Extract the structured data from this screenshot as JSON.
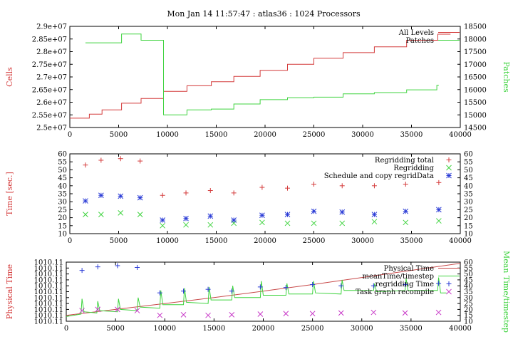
{
  "title": "Mon Jan 14 11:57:47 : atlas36 : 1024 Processors",
  "colors": {
    "red": "#d43a3a",
    "green": "#3fd33f",
    "blue": "#2a3bd6",
    "magenta": "#c83ac8",
    "phys": "#c84a4a"
  },
  "chart_data": [
    {
      "type": "line",
      "xlim": [
        0,
        40000
      ],
      "x_ticks": [
        "0",
        "5000",
        "10000",
        "15000",
        "20000",
        "25000",
        "30000",
        "35000",
        "40000"
      ],
      "ylabel": "Cells",
      "ylabel_right": "Patches",
      "ylim": [
        25000000,
        29000000
      ],
      "y_ticks": [
        "2.5e+07",
        "2.55e+07",
        "2.6e+07",
        "2.65e+07",
        "2.7e+07",
        "2.75e+07",
        "2.8e+07",
        "2.85e+07",
        "2.9e+07"
      ],
      "ylim_right": [
        14500,
        18500
      ],
      "y_ticks_right": [
        "14500",
        "15000",
        "15500",
        "16000",
        "16500",
        "17000",
        "17500",
        "18000",
        "18500"
      ],
      "legend_position": "top-right",
      "series": [
        {
          "name": "All Levels",
          "axis": "left",
          "color": "red",
          "x": [
            0,
            2000,
            2000,
            3300,
            3300,
            5300,
            5300,
            7300,
            7300,
            9600,
            9600,
            12000,
            12000,
            14500,
            14500,
            16800,
            16800,
            19500,
            19500,
            22300,
            22300,
            25000,
            25000,
            28000,
            28000,
            31200,
            31200,
            34500,
            34500,
            37700,
            37700,
            39000
          ],
          "y": [
            25370000,
            25370000,
            25530000,
            25530000,
            25700000,
            25700000,
            25960000,
            25960000,
            26150000,
            26150000,
            26430000,
            26430000,
            26650000,
            26650000,
            26810000,
            26810000,
            27020000,
            27020000,
            27260000,
            27260000,
            27500000,
            27500000,
            27740000,
            27740000,
            27960000,
            27960000,
            28190000,
            28190000,
            28450000,
            28450000,
            28690000,
            28690000
          ]
        },
        {
          "name": "Patches",
          "axis": "right",
          "color": "green",
          "x": [
            1600,
            5300,
            5300,
            7300,
            7300,
            9600,
            9600,
            12000,
            12000,
            14500,
            14500,
            16800,
            16800,
            19500,
            19500,
            22300,
            22300,
            25000,
            25000,
            28000,
            28000,
            31200,
            31200,
            34500,
            34500,
            37600,
            37600,
            37800
          ],
          "y": [
            17850,
            17850,
            18200,
            18200,
            17950,
            17950,
            15000,
            15000,
            15200,
            15200,
            15230,
            15230,
            15430,
            15430,
            15600,
            15600,
            15680,
            15680,
            15700,
            15700,
            15830,
            15830,
            15880,
            15880,
            15990,
            15990,
            16170,
            16170
          ]
        }
      ]
    },
    {
      "type": "scatter",
      "xlim": [
        0,
        40000
      ],
      "x_ticks": [
        "0",
        "5000",
        "10000",
        "15000",
        "20000",
        "25000",
        "30000",
        "35000",
        "40000"
      ],
      "ylabel": "Time [sec.]",
      "ylim": [
        10,
        60
      ],
      "y_ticks": [
        "10",
        "15",
        "20",
        "25",
        "30",
        "35",
        "40",
        "45",
        "50",
        "55",
        "60"
      ],
      "ylim_right": [
        10,
        60
      ],
      "y_ticks_right": [
        "10",
        "15",
        "20",
        "25",
        "30",
        "35",
        "40",
        "45",
        "50",
        "55",
        "60"
      ],
      "legend_position": "top-right",
      "series": [
        {
          "name": "Regridding total",
          "marker": "plus",
          "color": "red",
          "x": [
            1600,
            3200,
            5200,
            7200,
            9500,
            11900,
            14400,
            16800,
            19700,
            22300,
            25000,
            27900,
            31200,
            34400,
            37800
          ],
          "y": [
            53,
            56,
            57,
            55.5,
            34,
            35.5,
            37,
            35.5,
            39,
            38.5,
            41,
            40,
            40,
            41,
            42
          ]
        },
        {
          "name": "Regridding",
          "marker": "cross",
          "color": "green",
          "x": [
            1600,
            3200,
            5200,
            7200,
            9500,
            11900,
            14400,
            16800,
            19700,
            22300,
            25000,
            27900,
            31200,
            34400,
            37800
          ],
          "y": [
            22,
            22,
            23,
            22,
            15,
            15.5,
            15.5,
            16.5,
            17,
            16.5,
            16.5,
            16.5,
            17.5,
            17,
            18
          ]
        },
        {
          "name": "Schedule and copy regridData",
          "marker": "star",
          "color": "blue",
          "x": [
            1600,
            3200,
            5200,
            7200,
            9500,
            11900,
            14400,
            16800,
            19700,
            22300,
            25000,
            27900,
            31200,
            34400,
            37800
          ],
          "y": [
            30.5,
            34,
            33.5,
            32.5,
            18.5,
            19.5,
            21,
            18.5,
            21.5,
            22,
            24,
            23.5,
            22,
            24,
            25
          ]
        }
      ]
    },
    {
      "type": "line",
      "xlim": [
        0,
        40000
      ],
      "x_ticks": [
        "0",
        "5000",
        "10000",
        "15000",
        "20000",
        "25000",
        "30000",
        "35000",
        "40000"
      ],
      "ylabel": "Physical Time",
      "y_ticks": [
        "1010.11",
        "1010.11",
        "1010.11",
        "1010.11",
        "1010.11",
        "1010.11",
        "1010.11",
        "1010.11",
        "1010.11",
        "1010.11",
        "1010.11"
      ],
      "ylabel_right": "Mean Time/timestep",
      "ylim_right": [
        10,
        60
      ],
      "y_ticks_right": [
        "10",
        "15",
        "20",
        "25",
        "30",
        "35",
        "40",
        "45",
        "50",
        "55",
        "60"
      ],
      "legend_position": "top-right",
      "series": [
        {
          "name": "Physical Time",
          "axis": "left",
          "color": "phys",
          "x": [
            0,
            5000,
            10000,
            15000,
            20000,
            25000,
            30000,
            35000,
            40000
          ],
          "y_fraction": [
            0.1,
            0.2,
            0.3,
            0.4,
            0.51,
            0.62,
            0.74,
            0.86,
            0.98
          ]
        },
        {
          "name": "meanTime/timestep",
          "axis": "right",
          "color": "green",
          "x": [
            0,
            1500,
            1600,
            1800,
            3100,
            3200,
            3400,
            5200,
            5300,
            5500,
            7200,
            7300,
            7500,
            9500,
            9600,
            9800,
            11900,
            12000,
            12200,
            14400,
            14500,
            14700,
            16800,
            16900,
            17100,
            19700,
            19800,
            20000,
            22300,
            22400,
            22600,
            25000,
            25100,
            25300,
            27900,
            28000,
            28200,
            31200,
            31300,
            31500,
            34400,
            34500,
            34700,
            37700,
            37800,
            38000,
            38600
          ],
          "y": [
            14,
            16,
            29,
            18,
            17,
            27,
            19,
            18,
            29,
            20,
            19,
            30,
            22,
            21,
            36,
            24,
            24,
            38,
            26,
            25,
            39,
            28,
            28,
            40,
            30,
            30,
            44,
            32,
            32,
            42,
            33,
            33,
            44,
            34,
            33,
            45,
            36,
            36,
            42,
            35,
            36,
            46,
            36,
            36,
            47,
            34,
            34
          ]
        },
        {
          "name": "regridding Time",
          "marker": "plus",
          "color": "blue",
          "x": [
            1600,
            3200,
            5200,
            7200,
            9500,
            11900,
            14400,
            16800,
            19700,
            22300,
            25000,
            27900,
            31200,
            34400,
            37800
          ],
          "y": [
            53,
            56,
            57,
            55.5,
            34,
            35.5,
            37,
            35.5,
            39,
            38.5,
            41,
            40,
            40,
            41,
            42
          ]
        },
        {
          "name": "Task graph recompile",
          "marker": "cross",
          "color": "magenta",
          "x": [
            1600,
            3200,
            5200,
            7200,
            9500,
            11900,
            14400,
            16800,
            19700,
            22300,
            25000,
            27900,
            31200,
            34400,
            37800
          ],
          "y": [
            19,
            20,
            20,
            19,
            15,
            15.5,
            15,
            15.5,
            16,
            16.5,
            16.5,
            17,
            17.5,
            17,
            17.5
          ]
        }
      ]
    }
  ]
}
